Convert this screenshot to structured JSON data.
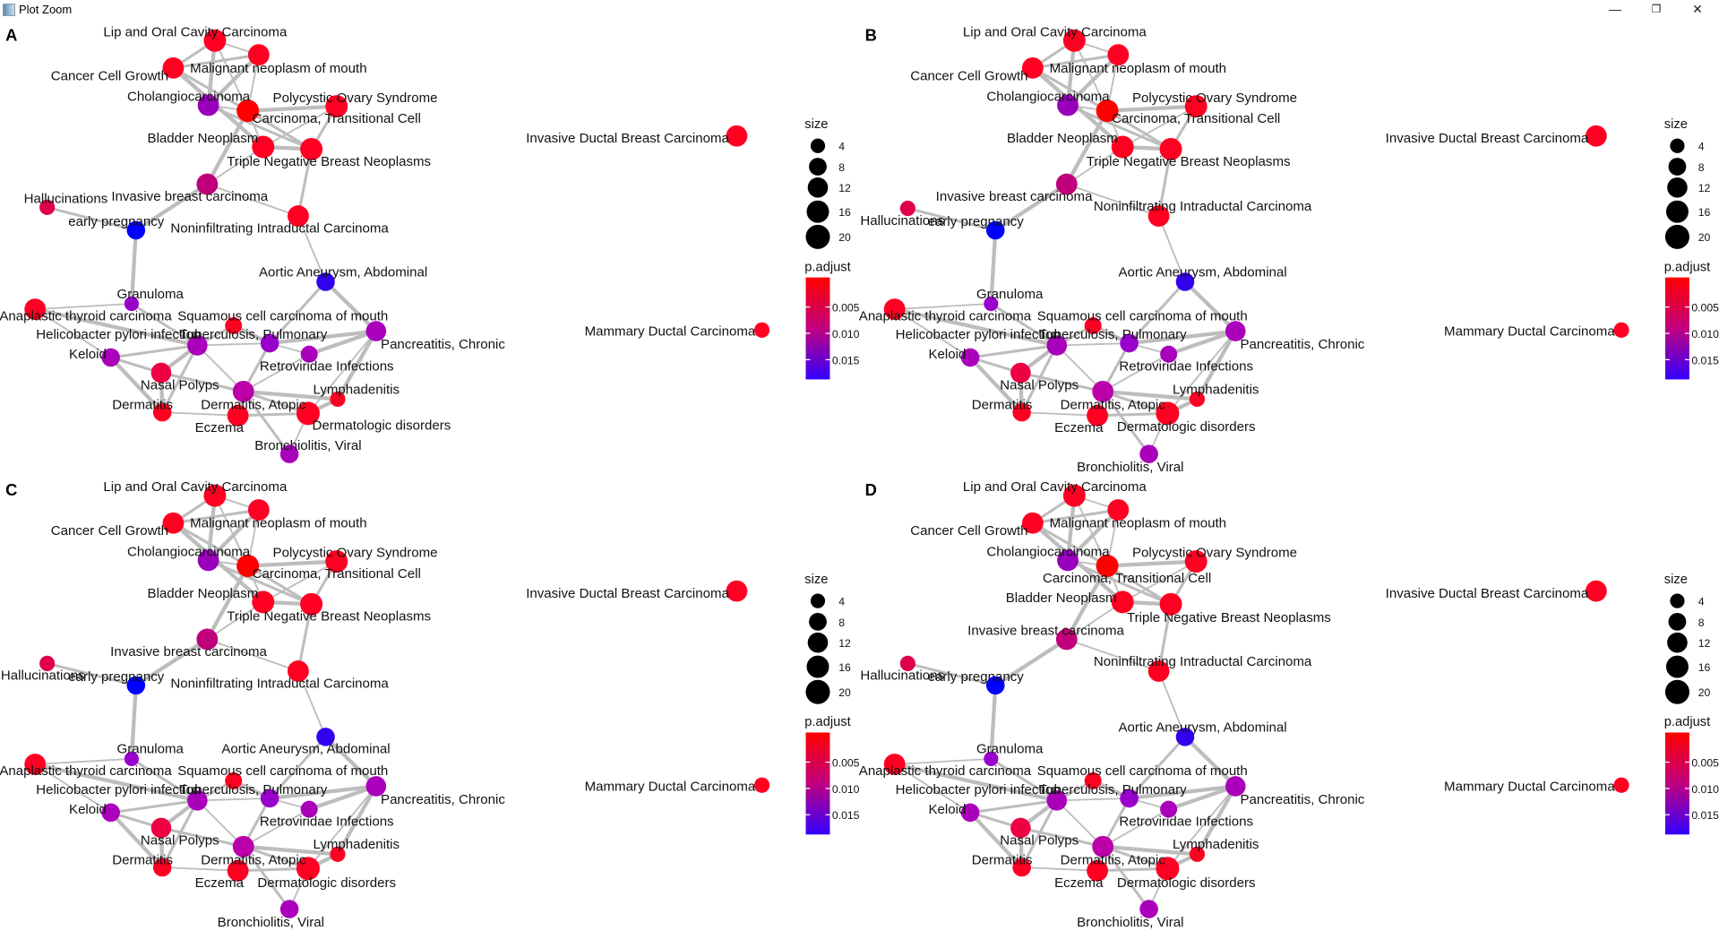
{
  "window": {
    "title": "Plot Zoom",
    "minimize": "—",
    "maximize": "❐",
    "close": "✕",
    "icon": "plot-window-icon"
  },
  "colors": {
    "high": "#ff0000",
    "mid": "#c0007a",
    "low": "#3300ff",
    "edge": "#bdbdbd"
  },
  "legend": {
    "size_title": "size",
    "sizes": [
      "4",
      "8",
      "12",
      "16",
      "20"
    ],
    "color_title": "p.adjust",
    "color_ticks": [
      "0.005",
      "0.010",
      "0.015"
    ]
  },
  "panels": [
    {
      "letter": "A"
    },
    {
      "letter": "B"
    },
    {
      "letter": "C"
    },
    {
      "letter": "D"
    }
  ],
  "nodes": [
    {
      "label": "Lip and Oral Cavity Carcinoma",
      "color": "#ff0022",
      "size": 16
    },
    {
      "label": "Malignant neoplasm of mouth",
      "color": "#ff0022",
      "size": 14
    },
    {
      "label": "Cancer Cell Growth",
      "color": "#ff0022",
      "size": 14
    },
    {
      "label": "Cholangiocarcinoma",
      "color": "#9900bb",
      "size": 14
    },
    {
      "label": "Carcinoma, Transitional Cell",
      "color": "#ff0000",
      "size": 16
    },
    {
      "label": "Polycystic Ovary Syndrome",
      "color": "#ff0022",
      "size": 16
    },
    {
      "label": "Bladder Neoplasm",
      "color": "#ff0022",
      "size": 16
    },
    {
      "label": "Triple Negative Breast Neoplasms",
      "color": "#ff0022",
      "size": 16
    },
    {
      "label": "Invasive breast carcinoma",
      "color": "#c0007a",
      "size": 14
    },
    {
      "label": "Hallucinations",
      "color": "#e0004a",
      "size": 5
    },
    {
      "label": "early pregnancy",
      "color": "#0000ff",
      "size": 9
    },
    {
      "label": "Noninfiltrating Intraductal Carcinoma",
      "color": "#ff0022",
      "size": 14
    },
    {
      "label": "Aortic Aneurysm, Abdominal",
      "color": "#3300ee",
      "size": 9
    },
    {
      "label": "Granuloma",
      "color": "#9900cc",
      "size": 4
    },
    {
      "label": "Anaplastic thyroid carcinoma",
      "color": "#ff0022",
      "size": 14
    },
    {
      "label": "Squamous cell carcinoma of mouth",
      "color": "#ff0022",
      "size": 7
    },
    {
      "label": "Helicobacter pylori infection",
      "color": "#aa00bb",
      "size": 12
    },
    {
      "label": "Tuberculosis, Pulmonary",
      "color": "#9900cc",
      "size": 9
    },
    {
      "label": "Pancreatitis, Chronic",
      "color": "#aa00bb",
      "size": 12
    },
    {
      "label": "Keloid",
      "color": "#aa00bb",
      "size": 9
    },
    {
      "label": "Retroviridae Infections",
      "color": "#aa00bb",
      "size": 7
    },
    {
      "label": "Nasal Polyps",
      "color": "#ee0044",
      "size": 12
    },
    {
      "label": "Dermatitis, Atopic",
      "color": "#bb00aa",
      "size": 14
    },
    {
      "label": "Dermatitis",
      "color": "#ff0022",
      "size": 9
    },
    {
      "label": "Eczema",
      "color": "#ff0022",
      "size": 14
    },
    {
      "label": "Dermatologic disorders",
      "color": "#ff0022",
      "size": 18
    },
    {
      "label": "Lymphadenitis",
      "color": "#ff0022",
      "size": 5
    },
    {
      "label": "Bronchiolitis, Viral",
      "color": "#aa00bb",
      "size": 9
    },
    {
      "label": "Invasive Ductal Breast Carcinoma",
      "color": "#ff0022",
      "size": 14
    },
    {
      "label": "Mammary Ductal Carcinoma",
      "color": "#ff0022",
      "size": 5
    }
  ]
}
